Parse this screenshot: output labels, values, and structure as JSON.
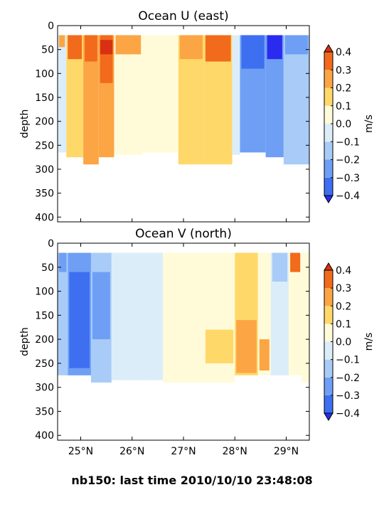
{
  "figure_caption": "nb150: last time 2010/10/10 23:48:08",
  "chart_data": [
    {
      "type": "heatmap",
      "title": "Ocean U (east)",
      "ylabel": "depth",
      "xlabel": "",
      "ylim": [
        410,
        0
      ],
      "xlim": [
        24.55,
        29.45
      ],
      "x_ticks": [
        25,
        26,
        27,
        28,
        29
      ],
      "x_tick_labels": [
        "",
        "",
        "",
        "",
        ""
      ],
      "y_ticks": [
        0,
        50,
        100,
        150,
        200,
        250,
        300,
        350,
        400
      ],
      "colorbar": {
        "label": "m/s",
        "levels": [
          -0.4,
          -0.3,
          -0.2,
          -0.1,
          0.0,
          0.1,
          0.2,
          0.3,
          0.4
        ],
        "tick_labels": [
          "−0.4",
          "−0.3",
          "−0.2",
          "−0.1",
          "0.0",
          "0.1",
          "0.2",
          "0.3",
          "0.4"
        ],
        "colors": [
          "#2b2bf0",
          "#3d6ff0",
          "#6f9ff5",
          "#a8ccf7",
          "#dcedfa",
          "#fffbd8",
          "#ffd86a",
          "#fca545",
          "#f26a1b",
          "#d83010"
        ]
      },
      "data_top": 20,
      "bands": [
        {
          "x0": 24.55,
          "x1": 24.72,
          "v": -0.05,
          "bottom": 265,
          "hot": [
            {
              "d0": 20,
              "d1": 45,
              "v": 0.22
            }
          ]
        },
        {
          "x0": 24.72,
          "x1": 25.05,
          "v": 0.12,
          "bottom": 275,
          "hot": [
            {
              "d0": 20,
              "d1": 70,
              "v": 0.32
            }
          ]
        },
        {
          "x0": 25.05,
          "x1": 25.35,
          "v": 0.28,
          "bottom": 290,
          "hot": [
            {
              "d0": 20,
              "d1": 75,
              "v": 0.35
            }
          ]
        },
        {
          "x0": 25.35,
          "x1": 25.65,
          "v": 0.28,
          "bottom": 275,
          "hot": [
            {
              "d0": 20,
              "d1": 120,
              "v": 0.33
            },
            {
              "d0": 30,
              "d1": 60,
              "v": 0.42
            }
          ]
        },
        {
          "x0": 25.65,
          "x1": 26.2,
          "v": 0.08,
          "bottom": 270,
          "hot": [
            {
              "d0": 20,
              "d1": 60,
              "v": 0.25
            }
          ]
        },
        {
          "x0": 26.2,
          "x1": 26.9,
          "v": 0.0,
          "bottom": 265,
          "hot": []
        },
        {
          "x0": 26.9,
          "x1": 27.4,
          "v": 0.15,
          "bottom": 290,
          "hot": [
            {
              "d0": 20,
              "d1": 70,
              "v": 0.25
            }
          ]
        },
        {
          "x0": 27.4,
          "x1": 27.95,
          "v": 0.18,
          "bottom": 290,
          "hot": [
            {
              "d0": 20,
              "d1": 75,
              "v": 0.32
            }
          ]
        },
        {
          "x0": 27.95,
          "x1": 28.1,
          "v": -0.05,
          "bottom": 270,
          "hot": []
        },
        {
          "x0": 28.1,
          "x1": 28.6,
          "v": -0.22,
          "bottom": 265,
          "hot": [
            {
              "d0": 20,
              "d1": 90,
              "v": -0.38
            }
          ]
        },
        {
          "x0": 28.6,
          "x1": 28.95,
          "v": -0.3,
          "bottom": 275,
          "hot": [
            {
              "d0": 20,
              "d1": 70,
              "v": -0.42
            }
          ]
        },
        {
          "x0": 28.95,
          "x1": 29.45,
          "v": -0.12,
          "bottom": 290,
          "hot": [
            {
              "d0": 20,
              "d1": 60,
              "v": -0.25
            }
          ]
        }
      ]
    },
    {
      "type": "heatmap",
      "title": "Ocean V (north)",
      "ylabel": "depth",
      "xlabel": "",
      "ylim": [
        410,
        0
      ],
      "xlim": [
        24.55,
        29.45
      ],
      "x_ticks": [
        25,
        26,
        27,
        28,
        29
      ],
      "x_tick_labels": [
        "25°N",
        "26°N",
        "27°N",
        "28°N",
        "29°N"
      ],
      "y_ticks": [
        0,
        50,
        100,
        150,
        200,
        250,
        300,
        350,
        400
      ],
      "colorbar": {
        "label": "m/s",
        "levels": [
          -0.4,
          -0.3,
          -0.2,
          -0.1,
          0.0,
          0.1,
          0.2,
          0.3,
          0.4
        ],
        "tick_labels": [
          "−0.4",
          "−0.3",
          "−0.2",
          "−0.1",
          "0.0",
          "0.1",
          "0.2",
          "0.3",
          "0.4"
        ],
        "colors": [
          "#2b2bf0",
          "#3d6ff0",
          "#6f9ff5",
          "#a8ccf7",
          "#dcedfa",
          "#fffbd8",
          "#ffd86a",
          "#fca545",
          "#f26a1b",
          "#d83010"
        ]
      },
      "data_top": 20,
      "bands": [
        {
          "x0": 24.55,
          "x1": 24.75,
          "v": -0.15,
          "bottom": 275,
          "hot": [
            {
              "d0": 20,
              "d1": 60,
              "v": -0.25
            }
          ]
        },
        {
          "x0": 24.75,
          "x1": 25.2,
          "v": -0.25,
          "bottom": 275,
          "hot": [
            {
              "d0": 60,
              "d1": 260,
              "v": -0.32
            }
          ]
        },
        {
          "x0": 25.2,
          "x1": 25.6,
          "v": -0.18,
          "bottom": 290,
          "hot": [
            {
              "d0": 60,
              "d1": 200,
              "v": -0.25
            }
          ]
        },
        {
          "x0": 25.6,
          "x1": 26.3,
          "v": -0.08,
          "bottom": 285,
          "hot": []
        },
        {
          "x0": 26.3,
          "x1": 26.6,
          "v": -0.02,
          "bottom": 285,
          "hot": []
        },
        {
          "x0": 26.6,
          "x1": 27.4,
          "v": 0.02,
          "bottom": 290,
          "hot": []
        },
        {
          "x0": 27.4,
          "x1": 28.0,
          "v": 0.05,
          "bottom": 290,
          "hot": [
            {
              "d0": 180,
              "d1": 250,
              "v": 0.15
            }
          ]
        },
        {
          "x0": 28.0,
          "x1": 28.45,
          "v": 0.12,
          "bottom": 275,
          "hot": [
            {
              "d0": 160,
              "d1": 270,
              "v": 0.2
            }
          ]
        },
        {
          "x0": 28.45,
          "x1": 28.7,
          "v": 0.08,
          "bottom": 275,
          "hot": [
            {
              "d0": 200,
              "d1": 265,
              "v": 0.25
            }
          ]
        },
        {
          "x0": 28.7,
          "x1": 29.05,
          "v": -0.08,
          "bottom": 275,
          "hot": [
            {
              "d0": 20,
              "d1": 80,
              "v": -0.15
            }
          ]
        },
        {
          "x0": 29.05,
          "x1": 29.3,
          "v": 0.05,
          "bottom": 275,
          "hot": [
            {
              "d0": 20,
              "d1": 60,
              "v": 0.35
            }
          ]
        },
        {
          "x0": 29.3,
          "x1": 29.45,
          "v": 0.0,
          "bottom": 290,
          "hot": []
        }
      ]
    }
  ]
}
